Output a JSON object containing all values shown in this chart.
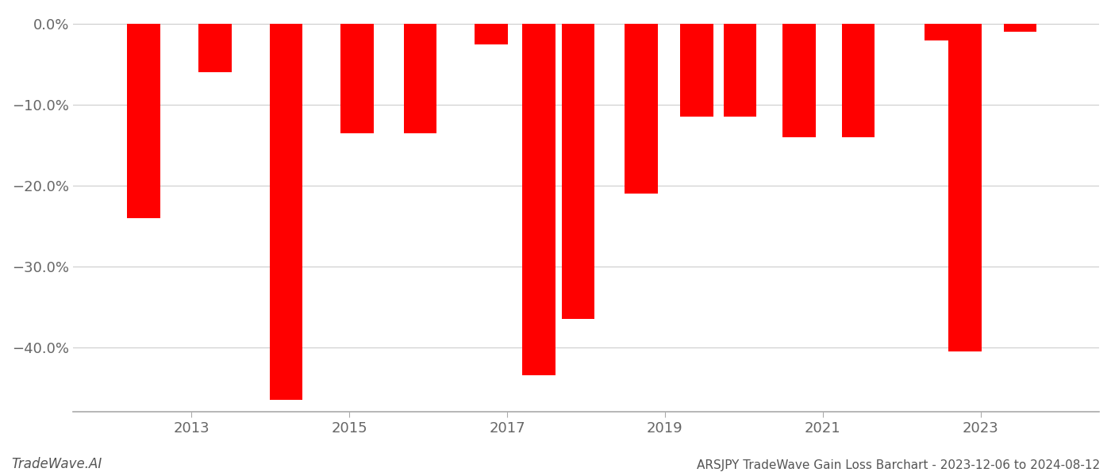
{
  "bars": [
    {
      "x": 2012.4,
      "value": -24.0
    },
    {
      "x": 2013.3,
      "value": -6.0
    },
    {
      "x": 2014.2,
      "value": -46.5
    },
    {
      "x": 2015.1,
      "value": -13.5
    },
    {
      "x": 2015.9,
      "value": -13.5
    },
    {
      "x": 2016.8,
      "value": -2.5
    },
    {
      "x": 2017.4,
      "value": -43.5
    },
    {
      "x": 2017.9,
      "value": -36.5
    },
    {
      "x": 2018.7,
      "value": -21.0
    },
    {
      "x": 2019.4,
      "value": -11.5
    },
    {
      "x": 2019.95,
      "value": -11.5
    },
    {
      "x": 2020.7,
      "value": -14.0
    },
    {
      "x": 2021.45,
      "value": -14.0
    },
    {
      "x": 2022.5,
      "value": -2.0
    },
    {
      "x": 2022.8,
      "value": -40.5
    },
    {
      "x": 2023.5,
      "value": -1.0
    }
  ],
  "bar_color": "#ff0000",
  "bar_width": 0.42,
  "xlim": [
    2011.5,
    2024.5
  ],
  "ylim": [
    -48,
    1.5
  ],
  "yticks": [
    0,
    -10,
    -20,
    -30,
    -40
  ],
  "ytick_labels": [
    "0.0%",
    "−10.0%",
    "−20.0%",
    "−30.0%",
    "−40.0%"
  ],
  "xticks": [
    2013,
    2015,
    2017,
    2019,
    2021,
    2023
  ],
  "title": "ARSJPY TradeWave Gain Loss Barchart - 2023-12-06 to 2024-08-12",
  "footnote": "TradeWave.AI",
  "grid_color": "#cccccc",
  "background_color": "#ffffff",
  "spine_color": "#aaaaaa"
}
